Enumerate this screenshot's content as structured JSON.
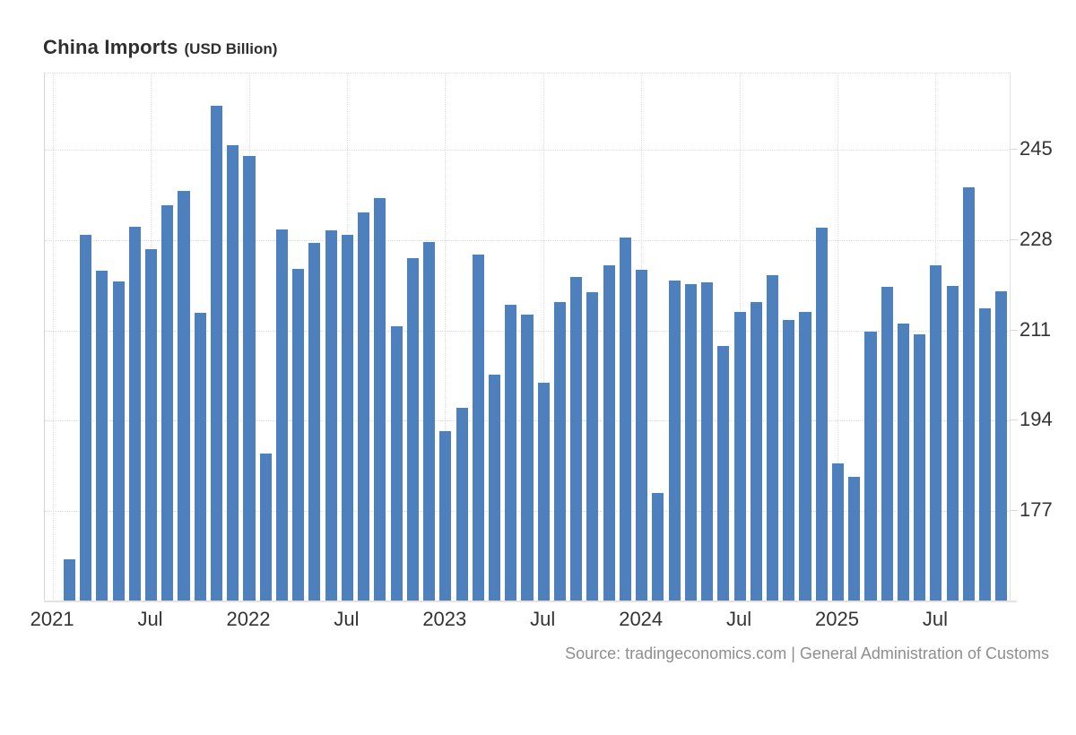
{
  "header": {
    "title": "China Imports",
    "subtitle": "(USD Billion)"
  },
  "footer": {
    "source": "Source: tradingeconomics.com | General Administration of Customs"
  },
  "chart_data": {
    "type": "bar",
    "title": "China Imports",
    "unit_label": "(USD Billion)",
    "bar_color": "#4d80bd",
    "legend": "none",
    "grid": true,
    "x_tick_labels": [
      "2021",
      "Jul",
      "2022",
      "Jul",
      "2023",
      "Jul",
      "2024",
      "Jul",
      "2025",
      "Jul"
    ],
    "x_tick_slots": [
      0,
      6,
      12,
      18,
      24,
      30,
      36,
      42,
      48,
      54
    ],
    "leading_empty_slots": 1,
    "y_ticks": [
      177,
      194,
      211,
      228,
      245
    ],
    "y_min": 160,
    "y_max": 259.3,
    "ylabel": "",
    "xlabel": "",
    "months": [
      "Feb 2021",
      "Mar 2021",
      "Apr 2021",
      "May 2021",
      "Jun 2021",
      "Jul 2021",
      "Aug 2021",
      "Sep 2021",
      "Oct 2021",
      "Nov 2021",
      "Dec 2021",
      "Jan 2022",
      "Feb 2022",
      "Mar 2022",
      "Apr 2022",
      "May 2022",
      "Jun 2022",
      "Jul 2022",
      "Aug 2022",
      "Sep 2022",
      "Oct 2022",
      "Nov 2022",
      "Dec 2022",
      "Jan 2023",
      "Feb 2023",
      "Mar 2023",
      "Apr 2023",
      "May 2023",
      "Jun 2023",
      "Jul 2023",
      "Aug 2023",
      "Sep 2023",
      "Oct 2023",
      "Nov 2023",
      "Dec 2023",
      "Jan 2024",
      "Feb 2024",
      "Mar 2024",
      "Apr 2024",
      "May 2024",
      "Jun 2024",
      "Jul 2024",
      "Aug 2024",
      "Sep 2024",
      "Oct 2024",
      "Nov 2024",
      "Dec 2024",
      "Jan 2025",
      "Feb 2025",
      "Mar 2025",
      "Apr 2025",
      "May 2025",
      "Jun 2025",
      "Jul 2025",
      "Aug 2025",
      "Sep 2025",
      "Oct 2025",
      "Nov 2025"
    ],
    "values": [
      168.0,
      228.9,
      222.3,
      220.2,
      230.4,
      226.3,
      234.5,
      237.2,
      214.3,
      253.3,
      245.9,
      243.8,
      187.9,
      229.9,
      222.6,
      227.5,
      229.8,
      228.9,
      233.2,
      235.8,
      211.8,
      224.6,
      227.6,
      192.1,
      196.4,
      225.3,
      202.7,
      215.8,
      213.9,
      201.1,
      216.4,
      221.1,
      218.1,
      223.3,
      228.4,
      222.4,
      180.4,
      220.3,
      219.7,
      220.0,
      208.1,
      214.4,
      216.4,
      221.4,
      213.0,
      214.4,
      230.3,
      185.9,
      183.4,
      210.8,
      219.1,
      212.3,
      210.3,
      223.3,
      219.3,
      237.9,
      215.1,
      218.4
    ]
  },
  "colors": {
    "bar": "#4d80bd",
    "axis_label": "#333333",
    "title": "#2f2f2f",
    "source_text": "#8e8e8e",
    "gridline": "#dcdcdc",
    "axis_line": "#e2e2e2"
  }
}
